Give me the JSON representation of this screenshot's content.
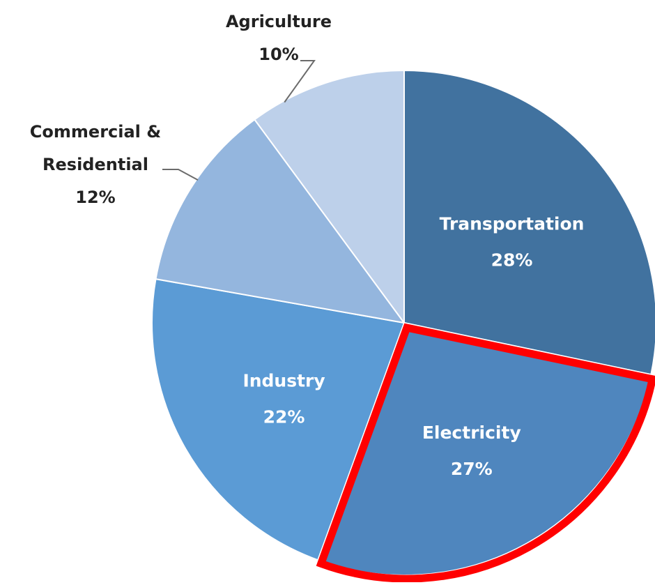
{
  "chart_data": {
    "type": "pie",
    "title": "",
    "slices": [
      {
        "label": "Transportation",
        "value": 28,
        "value_label": "28%",
        "color": "#41729f",
        "label_position": "inside"
      },
      {
        "label": "Electricity",
        "value": 27,
        "value_label": "27%",
        "color": "#4f86be",
        "label_position": "inside",
        "highlighted": true
      },
      {
        "label": "Industry",
        "value": 22,
        "value_label": "22%",
        "color": "#5b9bd5",
        "label_position": "inside"
      },
      {
        "label": "Commercial & Residential",
        "label_lines": [
          "Commercial &",
          "Residential"
        ],
        "value": 12,
        "value_label": "12%",
        "color": "#94b6de",
        "label_position": "outside"
      },
      {
        "label": "Agriculture",
        "value": 10,
        "value_label": "10%",
        "color": "#bdd0ea",
        "label_position": "outside"
      }
    ],
    "start": "12 o'clock",
    "direction": "clockwise",
    "highlight_color": "#ff0000",
    "legend": "none"
  }
}
